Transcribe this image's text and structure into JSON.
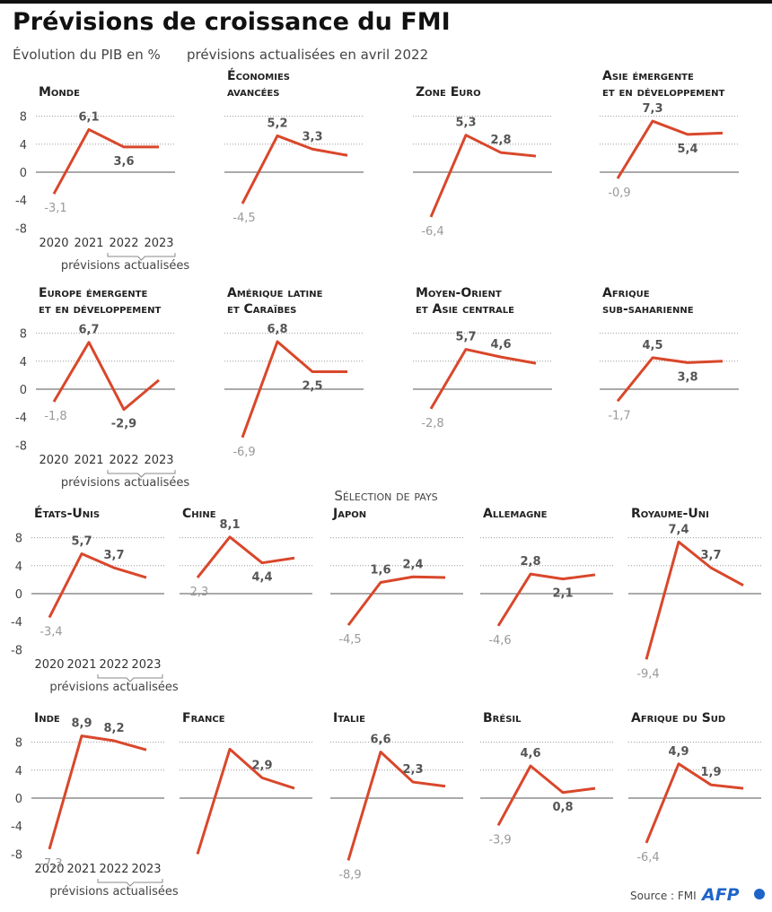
{
  "header": {
    "title": "Prévisions de croissance du FMI",
    "subtitle": "Évolution du PIB en %",
    "note": "prévisions actualisées en avril 2022"
  },
  "section_title": "Sélection de pays",
  "footer": {
    "source": "Source : FMI",
    "logo": "AFP"
  },
  "chart_data": [
    {
      "type": "line",
      "title": [
        "Monde"
      ],
      "categories": [
        "2020",
        "2021",
        "2022",
        "2023"
      ],
      "values": [
        -3.1,
        6.1,
        3.6,
        3.6
      ],
      "value_labels": [
        "-3,1",
        "6,1",
        "3,6",
        null
      ],
      "forecast_note": "prévisions actualisées",
      "color": "#d9472b",
      "ylim": [
        -10,
        10
      ],
      "yticks": [
        8,
        4,
        0,
        -4,
        -8
      ],
      "tick_labels": true
    },
    {
      "type": "line",
      "title": [
        "Économies",
        "avancées"
      ],
      "categories": [
        null,
        null,
        null,
        null
      ],
      "values": [
        -4.5,
        5.2,
        3.3,
        2.4
      ],
      "value_labels": [
        "-4,5",
        "5,2",
        "3,3",
        null
      ],
      "color": "#d9472b",
      "ylim": [
        -10,
        10
      ],
      "yticks": [
        8,
        4,
        0,
        -4,
        -8
      ],
      "tick_labels": false
    },
    {
      "type": "line",
      "title": [
        "Zone Euro"
      ],
      "categories": [
        null,
        null,
        null,
        null
      ],
      "values": [
        -6.4,
        5.3,
        2.8,
        2.3
      ],
      "value_labels": [
        "-6,4",
        "5,3",
        "2,8",
        null
      ],
      "color": "#d9472b",
      "ylim": [
        -10,
        10
      ],
      "yticks": [
        8,
        4,
        0,
        -4,
        -8
      ],
      "tick_labels": false
    },
    {
      "type": "line",
      "title": [
        "Asie émergente",
        "et en développement"
      ],
      "categories": [
        null,
        null,
        null,
        null
      ],
      "values": [
        -0.9,
        7.3,
        5.4,
        5.6
      ],
      "value_labels": [
        "-0,9",
        "7,3",
        "5,4",
        null
      ],
      "color": "#d9472b",
      "ylim": [
        -10,
        10
      ],
      "yticks": [
        8,
        4,
        0,
        -4,
        -8
      ],
      "tick_labels": false
    },
    {
      "type": "line",
      "title": [
        "Europe émergente",
        "et en développement"
      ],
      "categories": [
        "2020",
        "2021",
        "2022",
        "2023"
      ],
      "values": [
        -1.8,
        6.7,
        -2.9,
        1.3
      ],
      "value_labels": [
        "-1,8",
        "6,7",
        "-2,9",
        null
      ],
      "forecast_note": "prévisions actualisées",
      "color": "#d9472b",
      "ylim": [
        -10,
        10
      ],
      "yticks": [
        8,
        4,
        0,
        -4,
        -8
      ],
      "tick_labels": true
    },
    {
      "type": "line",
      "title": [
        "Amérique latine",
        "et Caraïbes"
      ],
      "categories": [
        null,
        null,
        null,
        null
      ],
      "values": [
        -6.9,
        6.8,
        2.5,
        2.5
      ],
      "value_labels": [
        "-6,9",
        "6,8",
        "2,5",
        null
      ],
      "color": "#d9472b",
      "ylim": [
        -10,
        10
      ],
      "yticks": [
        8,
        4,
        0,
        -4,
        -8
      ],
      "tick_labels": false
    },
    {
      "type": "line",
      "title": [
        "Moyen-Orient",
        "et Asie centrale"
      ],
      "categories": [
        null,
        null,
        null,
        null
      ],
      "values": [
        -2.8,
        5.7,
        4.6,
        3.7
      ],
      "value_labels": [
        "-2,8",
        "5,7",
        "4,6",
        null
      ],
      "color": "#d9472b",
      "ylim": [
        -10,
        10
      ],
      "yticks": [
        8,
        4,
        0,
        -4,
        -8
      ],
      "tick_labels": false
    },
    {
      "type": "line",
      "title": [
        "Afrique",
        "sub-saharienne"
      ],
      "categories": [
        null,
        null,
        null,
        null
      ],
      "values": [
        -1.7,
        4.5,
        3.8,
        4.0
      ],
      "value_labels": [
        "-1,7",
        "4,5",
        "3,8",
        null
      ],
      "color": "#d9472b",
      "ylim": [
        -10,
        10
      ],
      "yticks": [
        8,
        4,
        0,
        -4,
        -8
      ],
      "tick_labels": false
    },
    {
      "type": "line",
      "title": [
        "États-Unis"
      ],
      "categories": [
        "2020",
        "2021",
        "2022",
        "2023"
      ],
      "values": [
        -3.4,
        5.7,
        3.7,
        2.3
      ],
      "value_labels": [
        "-3,4",
        "5,7",
        "3,7",
        null
      ],
      "forecast_note": "prévisions actualisées",
      "color": "#d9472b",
      "ylim": [
        -10,
        10
      ],
      "yticks": [
        8,
        4,
        0,
        -4,
        -8
      ],
      "tick_labels": true
    },
    {
      "type": "line",
      "title": [
        "Chine"
      ],
      "categories": [
        null,
        null,
        null,
        null
      ],
      "values": [
        2.3,
        8.1,
        4.4,
        5.1
      ],
      "value_labels": [
        "2,3",
        "8,1",
        "4,4",
        null
      ],
      "color": "#d9472b",
      "ylim": [
        -10,
        10
      ],
      "yticks": [
        8,
        4,
        0,
        -4,
        -8
      ],
      "tick_labels": false
    },
    {
      "type": "line",
      "title": [
        "Japon"
      ],
      "categories": [
        null,
        null,
        null,
        null
      ],
      "values": [
        -4.5,
        1.6,
        2.4,
        2.3
      ],
      "value_labels": [
        "-4,5",
        "1,6",
        "2,4",
        null
      ],
      "color": "#d9472b",
      "ylim": [
        -10,
        10
      ],
      "yticks": [
        8,
        4,
        0,
        -4,
        -8
      ],
      "tick_labels": false
    },
    {
      "type": "line",
      "title": [
        "Allemagne"
      ],
      "categories": [
        null,
        null,
        null,
        null
      ],
      "values": [
        -4.6,
        2.8,
        2.1,
        2.7
      ],
      "value_labels": [
        "-4,6",
        "2,8",
        "2,1",
        null
      ],
      "color": "#d9472b",
      "ylim": [
        -10,
        10
      ],
      "yticks": [
        8,
        4,
        0,
        -4,
        -8
      ],
      "tick_labels": false
    },
    {
      "type": "line",
      "title": [
        "Royaume-Uni"
      ],
      "categories": [
        null,
        null,
        null,
        null
      ],
      "values": [
        -9.4,
        7.4,
        3.7,
        1.2
      ],
      "value_labels": [
        "-9,4",
        "7,4",
        "3,7",
        null
      ],
      "color": "#d9472b",
      "ylim": [
        -10,
        10
      ],
      "yticks": [
        8,
        4,
        0,
        -4,
        -8
      ],
      "tick_labels": false
    },
    {
      "type": "line",
      "title": [
        "Inde"
      ],
      "categories": [
        "2020",
        "2021",
        "2022",
        "2023"
      ],
      "values": [
        -7.3,
        8.9,
        8.2,
        6.9
      ],
      "value_labels": [
        "-7,3",
        "8,9",
        "8,2",
        null
      ],
      "forecast_note": "prévisions actualisées",
      "color": "#d9472b",
      "ylim": [
        -10,
        10
      ],
      "yticks": [
        8,
        4,
        0,
        -4,
        -8
      ],
      "tick_labels": true
    },
    {
      "type": "line",
      "title": [
        "France"
      ],
      "categories": [
        null,
        null,
        null,
        null
      ],
      "values": [
        -8,
        7,
        2.9,
        1.4
      ],
      "value_labels": [
        null,
        null,
        "2,9",
        null
      ],
      "color": "#d9472b",
      "ylim": [
        -10,
        10
      ],
      "yticks": [
        8,
        4,
        0,
        -4,
        -8
      ],
      "tick_labels": false
    },
    {
      "type": "line",
      "title": [
        "Italie"
      ],
      "categories": [
        null,
        null,
        null,
        null
      ],
      "values": [
        -8.9,
        6.6,
        2.3,
        1.7
      ],
      "value_labels": [
        "-8,9",
        "6,6",
        "2,3",
        null
      ],
      "color": "#d9472b",
      "ylim": [
        -10,
        10
      ],
      "yticks": [
        8,
        4,
        0,
        -4,
        -8
      ],
      "tick_labels": false
    },
    {
      "type": "line",
      "title": [
        "Brésil"
      ],
      "categories": [
        null,
        null,
        null,
        null
      ],
      "values": [
        -3.9,
        4.6,
        0.8,
        1.4
      ],
      "value_labels": [
        "-3,9",
        "4,6",
        "0,8",
        null
      ],
      "color": "#d9472b",
      "ylim": [
        -10,
        10
      ],
      "yticks": [
        8,
        4,
        0,
        -4,
        -8
      ],
      "tick_labels": false
    },
    {
      "type": "line",
      "title": [
        "Afrique du Sud"
      ],
      "categories": [
        null,
        null,
        null,
        null
      ],
      "values": [
        -6.4,
        4.9,
        1.9,
        1.4
      ],
      "value_labels": [
        "-6,4",
        "4,9",
        "1,9",
        null
      ],
      "color": "#d9472b",
      "ylim": [
        -10,
        10
      ],
      "yticks": [
        8,
        4,
        0,
        -4,
        -8
      ],
      "tick_labels": false
    }
  ]
}
